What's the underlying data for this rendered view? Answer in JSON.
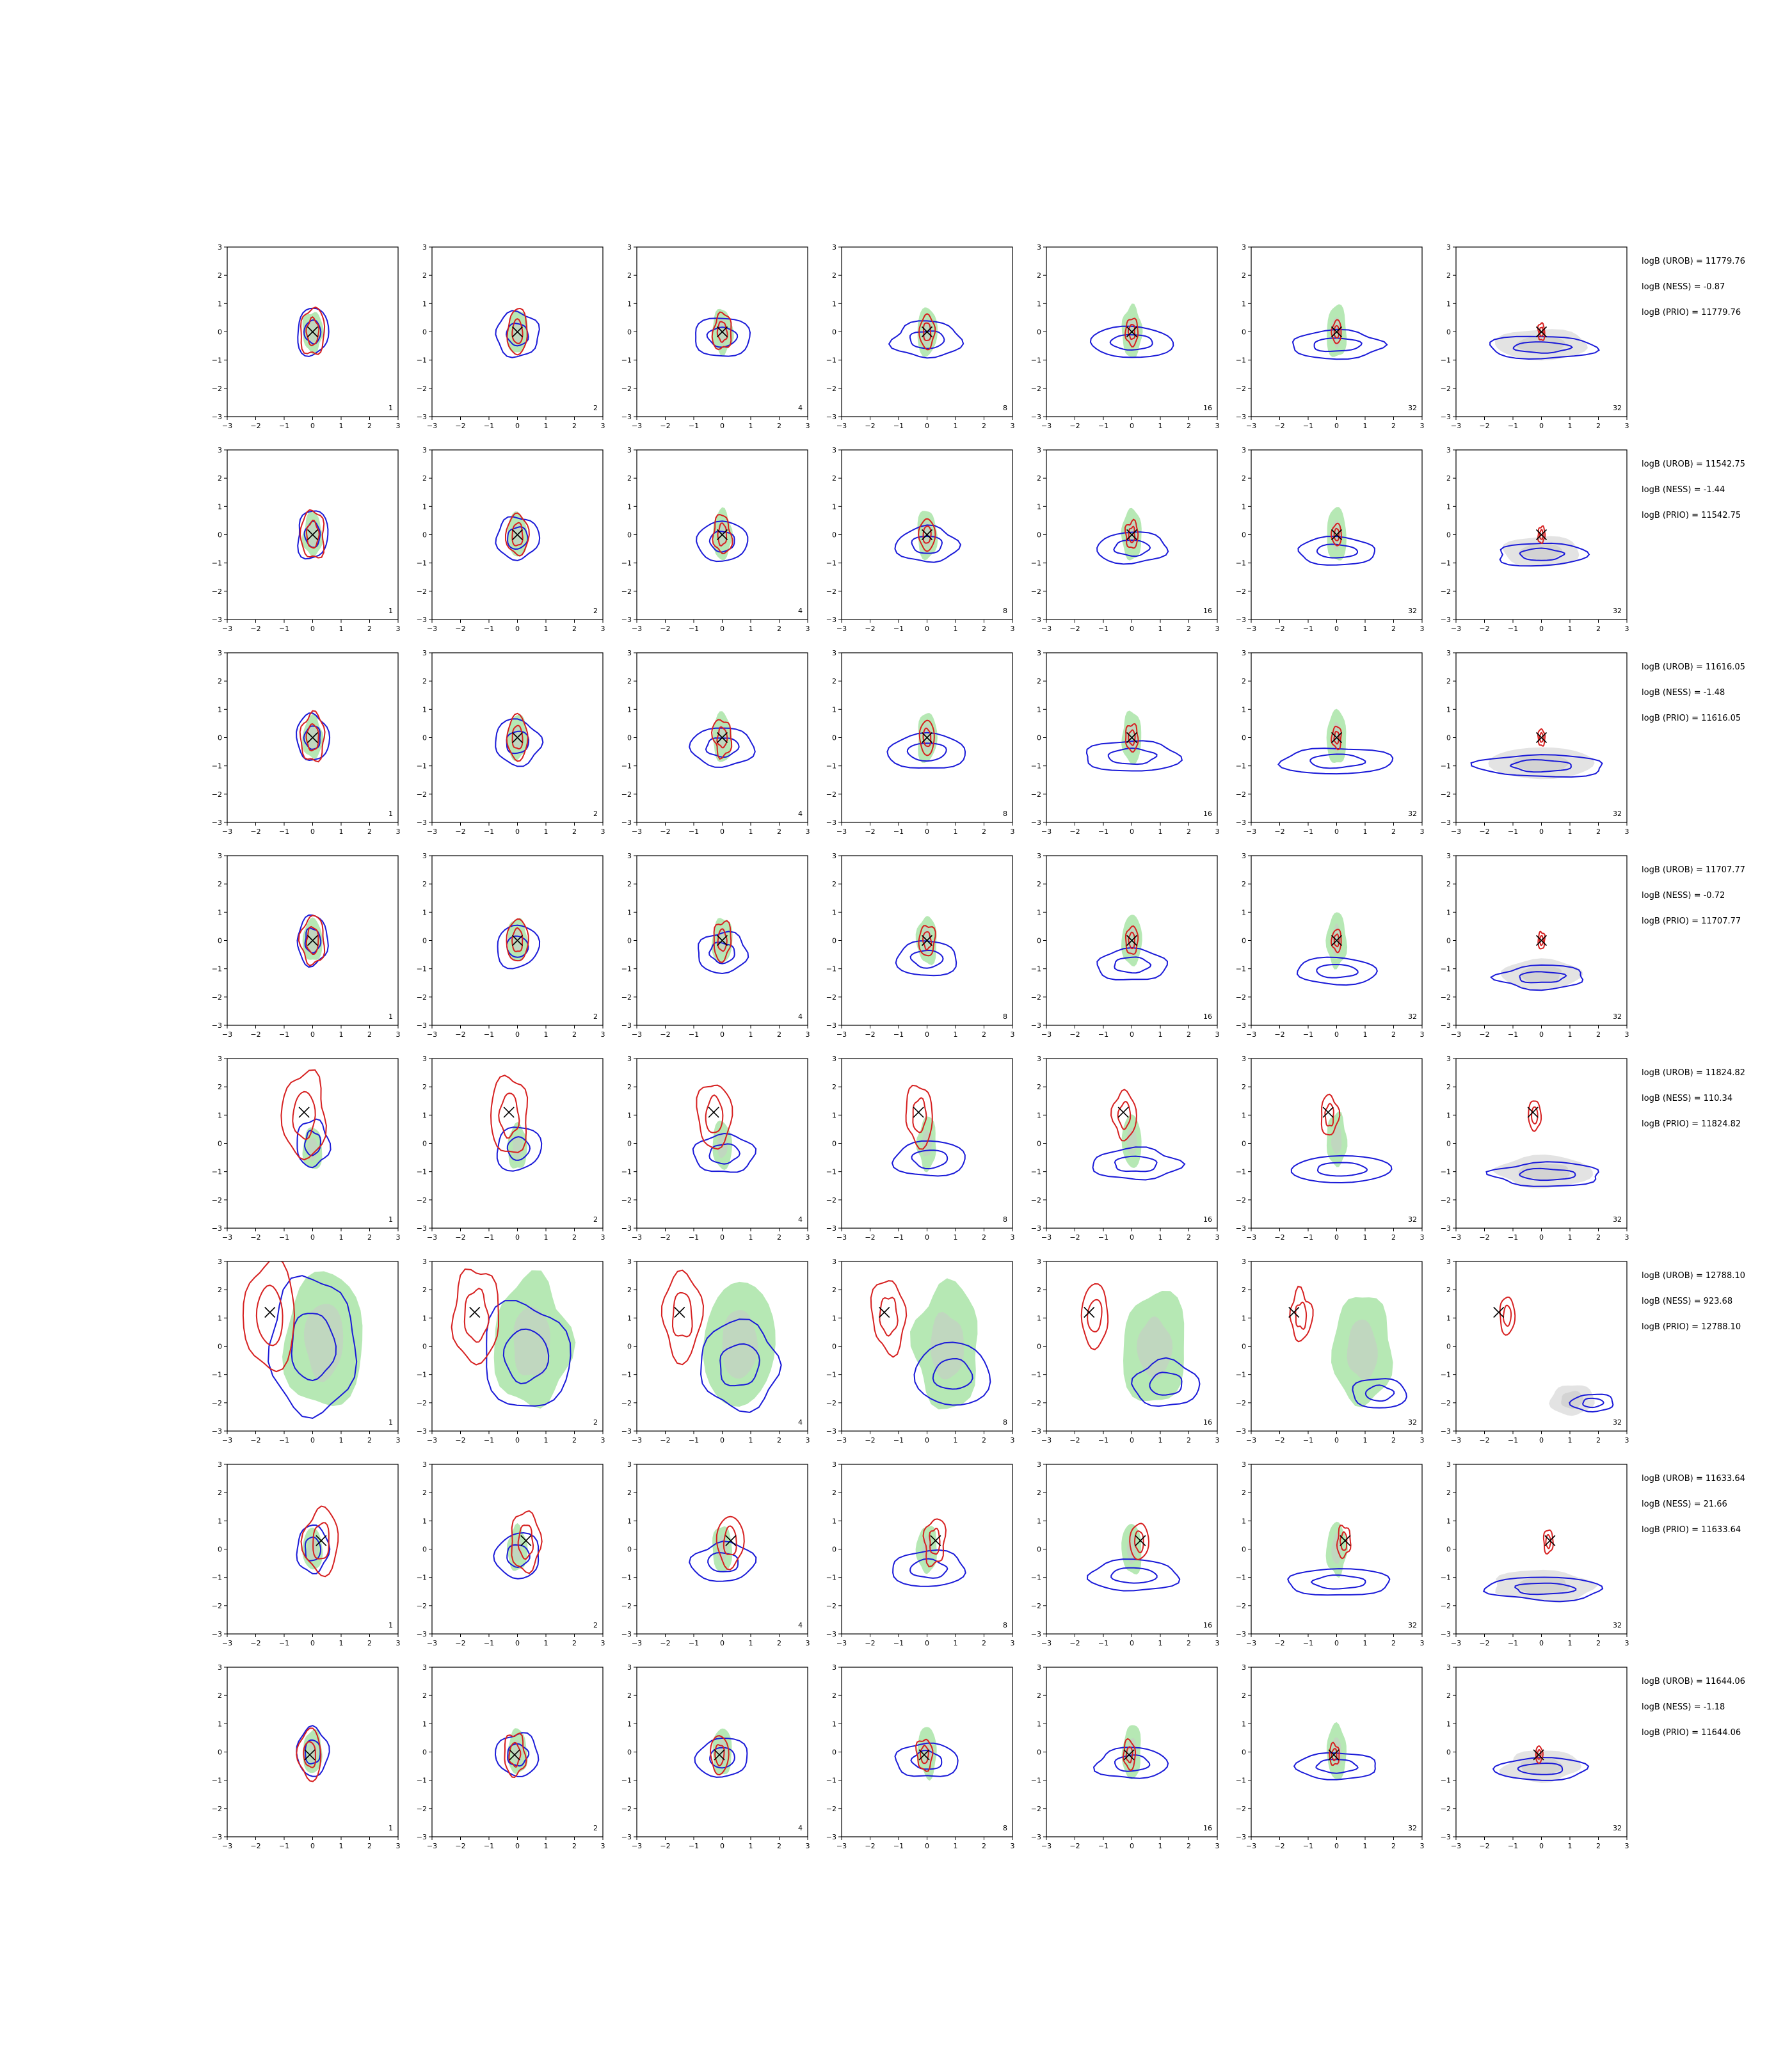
{
  "chart_data": {
    "type": "contour-grid",
    "rows": 8,
    "cols": 7,
    "xlim": [
      -3,
      3
    ],
    "ylim": [
      -3,
      3
    ],
    "ticks": [
      "−3",
      "−2",
      "−1",
      "0",
      "1",
      "2",
      "3"
    ],
    "panel_labels": [
      "1",
      "2",
      "4",
      "8",
      "16",
      "32",
      "32"
    ],
    "colors": {
      "reference_fill": "#b6e8b4",
      "reference_core": "#c8c8c8",
      "prior_fill": "#e3e3e3",
      "posterior": "#d62020",
      "approx": "#1a1ad8",
      "truth_marker": "#000000"
    },
    "true_points": [
      [
        0,
        0
      ],
      [
        0,
        0
      ],
      [
        0,
        0
      ],
      [
        0,
        0
      ],
      [
        -0.3,
        1.1
      ],
      [
        -1.5,
        1.2
      ],
      [
        0.3,
        0.3
      ],
      [
        -0.1,
        -0.1
      ]
    ],
    "annotations": [
      [
        "logB (UROB) = 11779.76",
        "logB (NESS) = -0.87",
        "logB (PRIO) = 11779.76"
      ],
      [
        "logB (UROB) = 11542.75",
        "logB (NESS) = -1.44",
        "logB (PRIO) = 11542.75"
      ],
      [
        "logB (UROB) = 11616.05",
        "logB (NESS) = -1.48",
        "logB (PRIO) = 11616.05"
      ],
      [
        "logB (UROB) = 11707.77",
        "logB (NESS) = -0.72",
        "logB (PRIO) = 11707.77"
      ],
      [
        "logB (UROB) = 11824.82",
        "logB (NESS) = 110.34",
        "logB (PRIO) = 11824.82"
      ],
      [
        "logB (UROB) = 12788.10",
        "logB (NESS) = 923.68",
        "logB (PRIO) = 12788.10"
      ],
      [
        "logB (UROB) = 11633.64",
        "logB (NESS) = 21.66",
        "logB (PRIO) = 11633.64"
      ],
      [
        "logB (UROB) = 11644.06",
        "logB (NESS) = -1.18",
        "logB (PRIO) = 11644.06"
      ]
    ]
  }
}
